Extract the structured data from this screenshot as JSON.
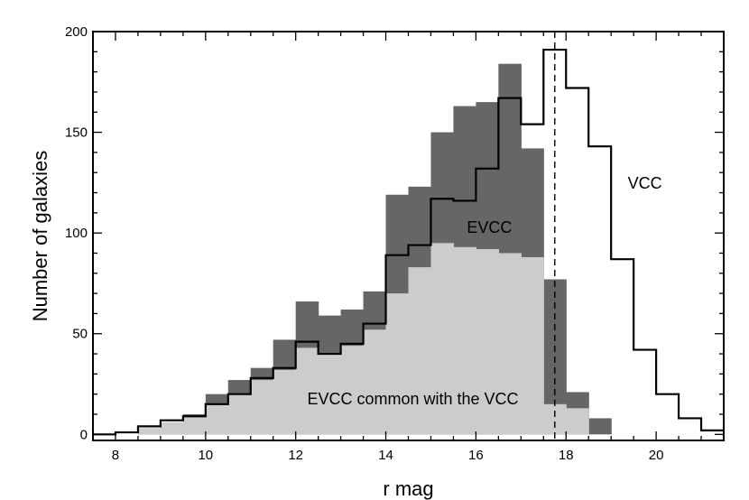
{
  "chart_data": {
    "type": "histogram",
    "xlabel": "r mag",
    "ylabel": "Number of galaxies",
    "xlim": [
      7.5,
      21.5
    ],
    "ylim": [
      -3,
      200
    ],
    "bin_width": 0.5,
    "bin_starts": [
      7.5,
      8.0,
      8.5,
      9.0,
      9.5,
      10.0,
      10.5,
      11.0,
      11.5,
      12.0,
      12.5,
      13.0,
      13.5,
      14.0,
      14.5,
      15.0,
      15.5,
      16.0,
      16.5,
      17.0,
      17.5,
      18.0,
      18.5,
      19.0,
      19.5,
      20.0,
      20.5,
      21.0
    ],
    "x_ticks": [
      8,
      10,
      12,
      14,
      16,
      18,
      20
    ],
    "y_ticks": [
      0,
      50,
      100,
      150,
      200
    ],
    "cutoff_line_x": 17.75,
    "series": [
      {
        "name": "EVCC",
        "style": "filled",
        "color": "#666666",
        "values": [
          0,
          0,
          3,
          6,
          10,
          20,
          27,
          33,
          47,
          66,
          59,
          62,
          71,
          119,
          123,
          150,
          163,
          165,
          184,
          142,
          77,
          21,
          8,
          0,
          0,
          0,
          0,
          0
        ]
      },
      {
        "name": "EVCC common with the VCC",
        "style": "filled",
        "color": "#cccccc",
        "values": [
          0,
          0,
          3,
          6,
          9,
          15,
          20,
          27,
          32,
          43,
          40,
          44,
          52,
          70,
          83,
          95,
          93,
          92,
          90,
          88,
          15,
          13,
          0,
          0,
          0,
          0,
          0,
          0
        ]
      },
      {
        "name": "VCC",
        "style": "step",
        "color": "#000000",
        "values": [
          0,
          1,
          4,
          7,
          9,
          15,
          20,
          28,
          33,
          46,
          40,
          45,
          55,
          89,
          94,
          117,
          116,
          132,
          167,
          154,
          191,
          172,
          143,
          87,
          42,
          20,
          8,
          2
        ]
      }
    ],
    "annotations": [
      {
        "text": "VCC",
        "x": 19.75,
        "y": 122
      },
      {
        "text": "EVCC",
        "x": 16.3,
        "y": 100
      },
      {
        "text": "EVCC common with the VCC",
        "x": 14.6,
        "y": 15
      }
    ]
  }
}
